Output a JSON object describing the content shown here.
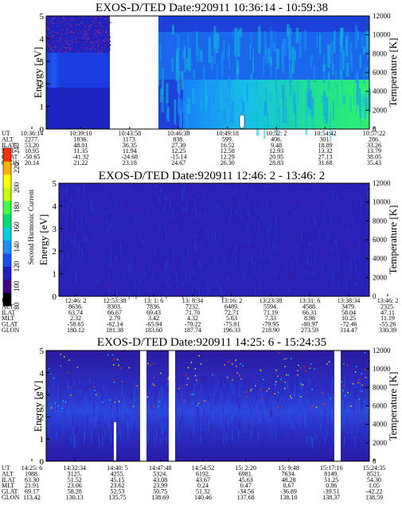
{
  "chart_data": [
    {
      "type": "heatmap",
      "title": "EXOS-D/TED   Date:920911   10:36:14 - 10:59:38",
      "ylabel": "Energy [eV]",
      "y_ticks": [
        "0",
        "1",
        "2",
        "3",
        "4",
        "5"
      ],
      "ylim": [
        0,
        5
      ],
      "y2label": "Temperature [K]",
      "y2_ticks": [
        "0",
        "2000",
        "4000",
        "6000",
        "8000",
        "10000",
        "12000"
      ],
      "y2lim": [
        0,
        12000
      ],
      "data_gap_ut": [
        "10:41",
        "10:43:30"
      ],
      "info_labels": [
        "UT",
        "ALT",
        "ILAT",
        "MLT",
        "GLAT",
        "GLON"
      ],
      "info_columns": [
        [
          "10:36:14",
          "2277.",
          "53.20",
          "10.95",
          "-50.65",
          "20.14"
        ],
        [
          "10:39:10",
          "1836.",
          "48.01",
          "11.35",
          "-41.32",
          "21.22"
        ],
        [
          "10:43:58",
          "1173.",
          "36.35",
          "11.94",
          "-24.68",
          "23.18"
        ],
        [
          "10:46:38",
          "838.",
          "27.30",
          "12.25",
          "-15.14",
          "24.67"
        ],
        [
          "10:49:18",
          "599.",
          "16.52",
          "12.58",
          "12.29",
          "26.30"
        ],
        [
          "10:52: 2",
          "406.",
          "9.48",
          "12.93",
          "20.95",
          "28.83"
        ],
        [
          "10:54:42",
          "301.",
          "18.89",
          "13.32",
          "27.13",
          "31.68"
        ],
        [
          "10:57:22",
          "286.",
          "33.26",
          "13.79",
          "38.05",
          "35.43"
        ]
      ]
    },
    {
      "type": "heatmap",
      "title": "EXOS-D/TED   Date:920911   12:46: 2 - 13:46: 2",
      "ylabel": "Energy [eV]",
      "y_ticks": [
        "0",
        "1",
        "2",
        "3",
        "4",
        "5"
      ],
      "ylim": [
        0,
        5
      ],
      "y2label": "Temperature [K]",
      "y2_ticks": [
        "0",
        "2000",
        "4000",
        "6000",
        "8000",
        "10000",
        "12000"
      ],
      "y2lim": [
        0,
        12000
      ],
      "info_labels": [
        "UT",
        "ALT",
        "ILAT",
        "MLT",
        "GLAT",
        "GLON"
      ],
      "info_columns": [
        [
          "12:46: 2",
          "8636.",
          "63.74",
          "2.32",
          "-58.65",
          "180.12"
        ],
        [
          "12:53:38",
          "8303.",
          "66.67",
          "2.79",
          "-62.14",
          "181.38"
        ],
        [
          "13: 1: 6",
          "7836.",
          "69.43",
          "3.42",
          "-65.94",
          "183.60"
        ],
        [
          "13: 8:34",
          "7232.",
          "71.70",
          "4.32",
          "-70.22",
          "187.74"
        ],
        [
          "13:16: 2",
          "6489.",
          "72.71",
          "5.63",
          "-75.01",
          "196.33"
        ],
        [
          "13:23:38",
          "5594.",
          "71.19",
          "7.33",
          "-79.95",
          "218.90"
        ],
        [
          "13:31: 6",
          "4588.",
          "66.31",
          "8.98",
          "-80.97",
          "273.59"
        ],
        [
          "13:38:34",
          "3479.",
          "58.04",
          "10.25",
          "-72.46",
          "314.47"
        ],
        [
          "13:46: 2",
          "2325.",
          "47.11",
          "11.19",
          "-55.26",
          "330.39"
        ]
      ]
    },
    {
      "type": "heatmap",
      "title": "EXOS-D/TED   Date:920911   14:25: 6 - 15:24:35",
      "ylabel": "Energy [eV]",
      "y_ticks": [
        "0",
        "1",
        "2",
        "3",
        "4",
        "5"
      ],
      "ylim": [
        0,
        5
      ],
      "y2label": "Temperature [K]",
      "y2_ticks": [
        "0",
        "2000",
        "4000",
        "6000",
        "8000",
        "10000",
        "12000"
      ],
      "y2lim": [
        0,
        12000
      ],
      "data_gaps_ut": [
        [
          "14:37:10",
          "14:38:00"
        ],
        [
          "14:45:50",
          "14:46:45"
        ],
        [
          "15:21:50",
          "15:22:40"
        ]
      ],
      "info_labels": [
        "UT",
        "ALT",
        "ILAT",
        "MLT",
        "GLAT",
        "GLON"
      ],
      "info_columns": [
        [
          "14:25: 6",
          "1988.",
          "63.30",
          "21.91",
          "69.17",
          "113.42"
        ],
        [
          "14:32:34",
          "3125.",
          "51.52",
          "23.06",
          "58.28",
          "130.13"
        ],
        [
          "14:40: 5",
          "4255.",
          "45.15",
          "23.62",
          "52.53",
          "135.75"
        ],
        [
          "14:47:48",
          "5324.",
          "43.08",
          "23.99",
          "50.75",
          "138.69"
        ],
        [
          "14:54:52",
          "6192.",
          "43.67",
          "0.24",
          "51.32",
          "140.46"
        ],
        [
          "15: 2:20",
          "6981.",
          "45.63",
          "0.47",
          "-34.56",
          "137.68"
        ],
        [
          "15: 9:48",
          "7634.",
          "48.28",
          "0.67",
          "-36.89",
          "138.10"
        ],
        [
          "15:17:16",
          "8149.",
          "51.25",
          "0.86",
          "-39.51",
          "138.37"
        ],
        [
          "15:24:35",
          "8521.",
          "54.30",
          "1.05",
          "-42.22",
          "138.59"
        ]
      ]
    }
  ],
  "colorbar": {
    "label": "Second Harmonic Current",
    "ticks": [
      "80",
      "100",
      "120",
      "140",
      "160",
      "180",
      "200",
      "220",
      "240"
    ],
    "range": [
      80,
      240
    ],
    "colors": [
      "#000000",
      "#400080",
      "#2020c0",
      "#1850f0",
      "#1890ff",
      "#00d0e0",
      "#00e070",
      "#40ff40",
      "#c8ff00",
      "#ffff00",
      "#ffb000",
      "#ff3000"
    ]
  }
}
